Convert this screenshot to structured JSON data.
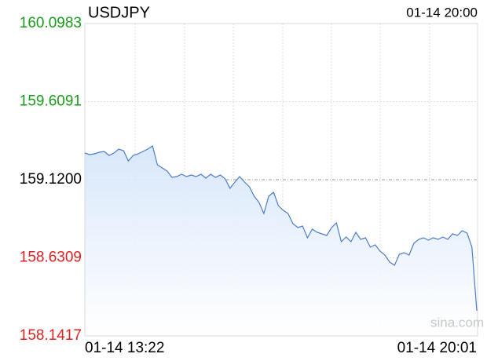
{
  "chart_data": {
    "type": "line",
    "title": "USDJPY",
    "timestamp": "01-14 20:00",
    "watermark": "sina.com",
    "ylim": [
      158.1417,
      160.0983
    ],
    "yticks": [
      158.1417,
      158.6309,
      {
        "value": 159.12,
        "label": "159.1200"
      },
      159.6091,
      160.0983
    ],
    "ytick_colors": [
      "#e02020",
      "#e02020",
      "#000000",
      "#1a9a1a",
      "#1a9a1a"
    ],
    "reference_line": 2,
    "grid": true,
    "categories": [
      "01-14 13:22",
      null,
      null,
      null,
      null,
      null,
      null,
      null,
      null,
      null,
      null,
      null,
      null,
      null,
      null,
      null,
      null,
      null,
      null,
      null,
      null,
      null,
      null,
      null,
      null,
      null,
      null,
      null,
      null,
      null,
      null,
      null,
      null,
      null,
      null,
      null,
      null,
      null,
      null,
      null,
      null,
      null,
      null,
      null,
      null,
      null,
      null,
      null,
      null,
      null,
      null,
      null,
      null,
      null,
      null,
      null,
      null,
      null,
      null,
      null,
      null,
      null,
      null,
      null,
      null,
      null,
      null,
      null,
      null,
      null,
      null,
      null,
      null,
      null,
      null,
      null,
      null,
      null,
      null,
      null,
      null,
      "01-14 20:01"
    ],
    "series": [
      {
        "name": "USDJPY",
        "color": "#4a7cc9",
        "values": [
          159.2872,
          159.2773,
          159.2822,
          159.2921,
          159.297,
          159.2724,
          159.2872,
          159.3117,
          159.3019,
          159.238,
          159.2724,
          159.2822,
          159.297,
          159.3117,
          159.3314,
          159.2134,
          159.1938,
          159.1741,
          159.1348,
          159.1397,
          159.1544,
          159.1397,
          159.1495,
          159.1397,
          159.1544,
          159.1298,
          159.1544,
          159.1348,
          159.1495,
          159.1249,
          159.0659,
          159.1053,
          159.1397,
          159.1053,
          159.0758,
          159.0168,
          158.9775,
          158.9086,
          159.0168,
          159.0414,
          158.9578,
          158.9283,
          158.9086,
          158.8447,
          158.8201,
          158.83,
          158.7562,
          158.8103,
          158.7906,
          158.7808,
          158.771,
          158.8201,
          158.8496,
          158.7317,
          158.7611,
          158.7317,
          158.7906,
          158.7464,
          158.7562,
          158.6972,
          158.712,
          158.6727,
          158.6481,
          158.6038,
          158.5842,
          158.653,
          158.6628,
          158.6481,
          158.7218,
          158.7464,
          158.7562,
          158.7415,
          158.7562,
          158.7464,
          158.7611,
          158.7464,
          158.7808,
          158.771,
          158.8005,
          158.7857,
          158.6972,
          158.299
        ]
      }
    ]
  }
}
